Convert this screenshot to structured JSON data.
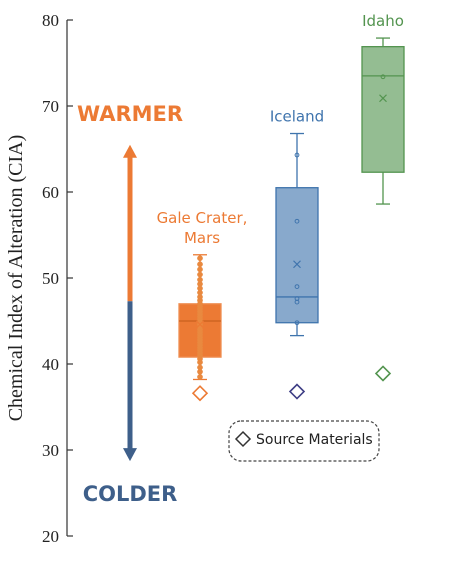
{
  "chart_data": {
    "type": "box",
    "ylabel": "Chemical Index of Alteration (CIA)",
    "ylim": [
      20,
      80
    ],
    "yticks": [
      20,
      30,
      40,
      50,
      60,
      70,
      80
    ],
    "series": [
      {
        "name_lines": [
          "Gale Crater,",
          "Mars"
        ],
        "color": "#ec7a34",
        "whisker_low": 38.2,
        "q1": 40.8,
        "median": 45.0,
        "q3": 47.0,
        "whisker_high": 52.7,
        "mean": 44.6,
        "points": [
          38.5,
          39.1,
          39.6,
          40.2,
          40.6,
          41.0,
          41.3,
          41.6,
          41.9,
          42.2,
          42.5,
          42.8,
          43.1,
          43.4,
          43.7,
          44.0,
          44.3,
          44.6,
          44.9,
          45.2,
          45.5,
          45.8,
          46.1,
          46.4,
          46.7,
          47.0,
          47.4,
          47.8,
          48.3,
          48.8,
          49.3,
          49.8,
          50.4,
          51.0,
          51.6,
          52.3
        ],
        "source_material": 36.6
      },
      {
        "name_lines": [
          "Iceland"
        ],
        "color": "#3f74ad",
        "whisker_low": 43.3,
        "q1": 44.8,
        "median": 47.8,
        "q3": 60.5,
        "whisker_high": 66.8,
        "mean": 51.6,
        "points": [
          44.8,
          47.2,
          47.6,
          49.0,
          56.6,
          64.3
        ],
        "source_material": 36.8
      },
      {
        "name_lines": [
          "Idaho"
        ],
        "color": "#53944f",
        "whisker_low": 58.6,
        "q1": 62.3,
        "median": 73.5,
        "q3": 76.9,
        "whisker_high": 77.9,
        "mean": 70.9,
        "points": [
          73.4
        ],
        "source_material": 38.9
      }
    ],
    "arrow": {
      "warmer_label": "WARMER",
      "colder_label": "COLDER",
      "warmer_color": "#ec7a34",
      "colder_color": "#3e5f8a",
      "top": 65.5,
      "split": 47.3,
      "bottom": 28.7
    },
    "legend": {
      "label": "Source Materials"
    }
  }
}
